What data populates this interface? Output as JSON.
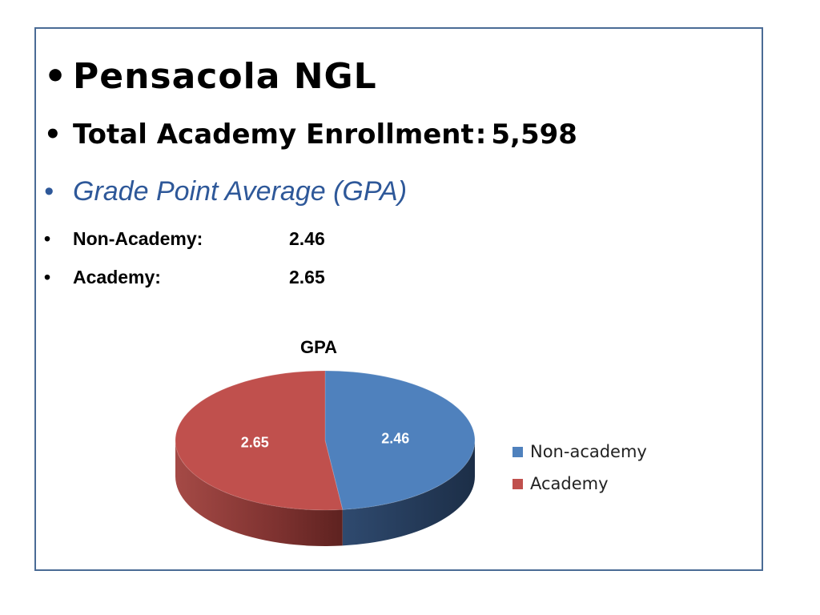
{
  "slide": {
    "title": "Pensacola NGL",
    "enrollment_label": "Total Academy Enrollment",
    "enrollment_separator": ":",
    "enrollment_value": "5,598",
    "gpa_heading": "Grade Point Average (GPA)",
    "stats": [
      {
        "label": "Non-Academy:",
        "value": "2.46"
      },
      {
        "label": "Academy:",
        "value": "2.65"
      }
    ]
  },
  "colors": {
    "border": "#4a6b95",
    "heading_accent": "#2e5899"
  },
  "chart_data": {
    "type": "pie",
    "title": "GPA",
    "categories": [
      "Non-academy",
      "Academy"
    ],
    "values": [
      2.46,
      2.65
    ],
    "data_labels": [
      "2.46",
      "2.65"
    ],
    "colors": [
      "#4f81bd",
      "#c0504d"
    ],
    "legend_position": "right",
    "style": "3d"
  }
}
